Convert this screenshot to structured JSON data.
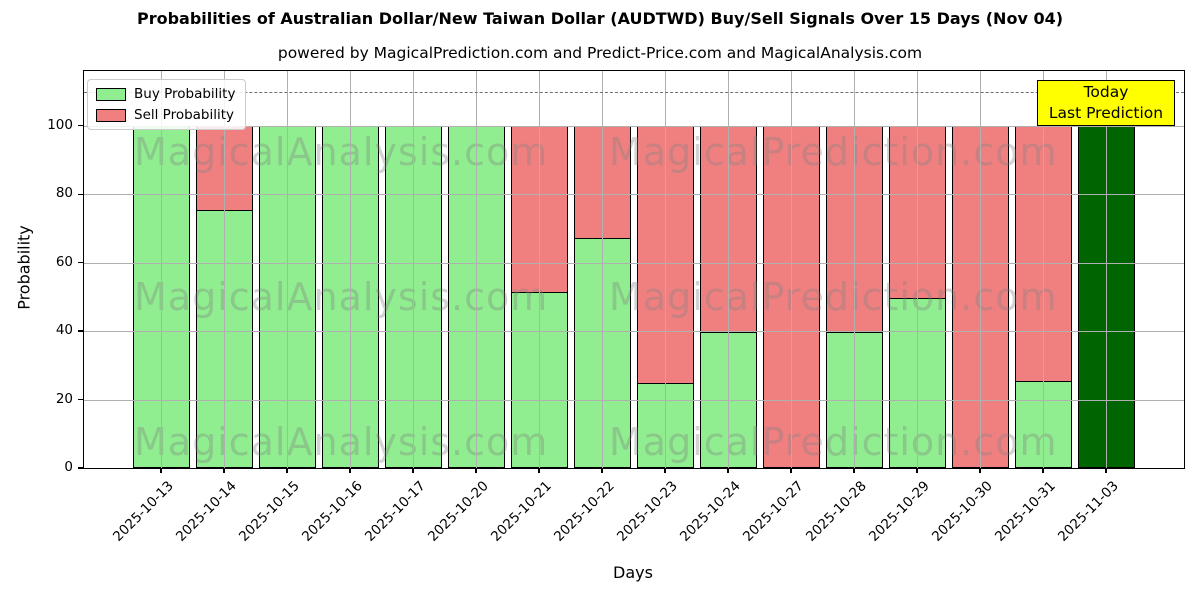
{
  "title": "Probabilities of Australian Dollar/New Taiwan Dollar (AUDTWD) Buy/Sell Signals Over 15 Days (Nov 04)",
  "subtitle": "powered by MagicalPrediction.com and Predict-Price.com and MagicalAnalysis.com",
  "legend": {
    "buy_label": "Buy Probability",
    "sell_label": "Sell Probability"
  },
  "annotation_box": {
    "line1": "Today",
    "line2": "Last Prediction",
    "bg_color": "#FFFF00"
  },
  "watermarks": [
    "MagicalAnalysis.com",
    "MagicalPrediction.com"
  ],
  "colors": {
    "buy": "#90EE90",
    "sell": "#F08080",
    "today_bar": "#006400",
    "bar_edge": "#000000",
    "grid": "#B0B0B0",
    "dashed_line": "#707070",
    "watermark": "rgba(128,128,128,0.35)"
  },
  "chart_data": {
    "type": "bar",
    "stacked": true,
    "title": "Probabilities of Australian Dollar/New Taiwan Dollar (AUDTWD) Buy/Sell Signals Over 15 Days (Nov 04)",
    "xlabel": "Days",
    "ylabel": "Probability",
    "categories": [
      "2025-10-13",
      "2025-10-14",
      "2025-10-15",
      "2025-10-16",
      "2025-10-17",
      "2025-10-20",
      "2025-10-21",
      "2025-10-22",
      "2025-10-23",
      "2025-10-24",
      "2025-10-27",
      "2025-10-28",
      "2025-10-29",
      "2025-10-30",
      "2025-10-31",
      "2025-11-03"
    ],
    "series": [
      {
        "name": "Buy Probability",
        "color": "#90EE90",
        "values": [
          100,
          75,
          100,
          100,
          100,
          100,
          51,
          67,
          24.5,
          39.5,
          0,
          39.5,
          49.5,
          0,
          25,
          100
        ]
      },
      {
        "name": "Sell Probability",
        "color": "#F08080",
        "values": [
          0,
          25,
          0,
          0,
          0,
          0,
          49,
          33,
          75.5,
          60.5,
          100,
          60.5,
          50.5,
          100,
          75,
          0
        ]
      }
    ],
    "today_index": 15,
    "yticks": [
      0,
      20,
      40,
      60,
      80,
      100
    ],
    "ylim": [
      0,
      116
    ],
    "dashed_line_y": 110,
    "grid": true,
    "legend_position": "upper left"
  }
}
